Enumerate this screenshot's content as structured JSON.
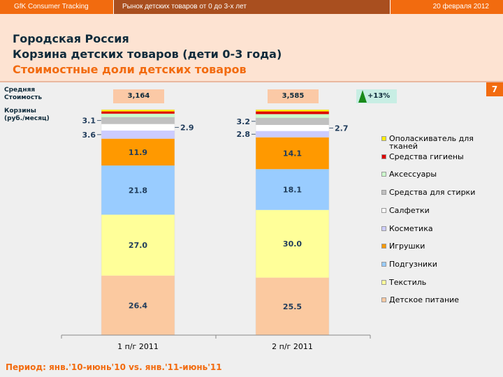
{
  "header": {
    "left": "GfK Consumer Tracking",
    "middle": "Рынок детских товаров от 0 до 3-х лет",
    "date": "20 февраля 2012"
  },
  "title": {
    "line1": "Городская Россия",
    "line2": "Корзина детских товаров (дети 0-3 года)",
    "line3": "Стоимостные доли детских товаров"
  },
  "page_number": "7",
  "side_label": {
    "line1": "Средняя",
    "line2": "Стоимость",
    "line3": "Корзины",
    "line4": "(руб./месяц)"
  },
  "avg_cost": [
    "3,164",
    "3,585"
  ],
  "growth": "+13%",
  "footer": "Период: янв.'10-июнь'10 vs. янв.'11-июнь'11",
  "chart_data": {
    "type": "bar",
    "stacked": true,
    "normalized": true,
    "categories": [
      "1 п/г 2011",
      "2 п/г 2011"
    ],
    "ylim": [
      0,
      100
    ],
    "series": [
      {
        "name": "Детское питание",
        "color": "#fbc9a0",
        "values": [
          26.4,
          25.5
        ],
        "labels": [
          "26.4",
          "25.5"
        ]
      },
      {
        "name": "Текстиль",
        "color": "#ffff99",
        "values": [
          27.0,
          30.0
        ],
        "labels": [
          "27.0",
          "30.0"
        ]
      },
      {
        "name": "Подгузники",
        "color": "#99ccff",
        "values": [
          21.8,
          18.1
        ],
        "labels": [
          "21.8",
          "18.1"
        ]
      },
      {
        "name": "Игрушки",
        "color": "#ff9900",
        "values": [
          11.9,
          14.1
        ],
        "labels": [
          "11.9",
          "14.1"
        ]
      },
      {
        "name": "Косметика",
        "color": "#ccccff",
        "values": [
          3.6,
          2.8
        ],
        "labels": [
          "3.6",
          "2.8"
        ]
      },
      {
        "name": "Салфетки",
        "color": "#ffffff",
        "values": [
          2.9,
          2.7
        ],
        "labels": [
          "2.9",
          "2.7"
        ]
      },
      {
        "name": "Средства для стирки",
        "color": "#c0c0c0",
        "values": [
          3.1,
          3.2
        ],
        "labels": [
          "3.1",
          "3.2"
        ]
      },
      {
        "name": "Аксессуары",
        "color": "#ccffcc",
        "values": [
          1.5,
          1.6
        ],
        "labels": [
          "",
          ""
        ]
      },
      {
        "name": "Средства гигиены",
        "color": "#dd0000",
        "values": [
          1.0,
          1.2
        ],
        "labels": [
          "",
          ""
        ]
      },
      {
        "name": "Ополаскиватель для тканей",
        "color": "#ffee00",
        "values": [
          0.8,
          0.8
        ],
        "labels": [
          "",
          ""
        ]
      }
    ],
    "legend": "right"
  }
}
